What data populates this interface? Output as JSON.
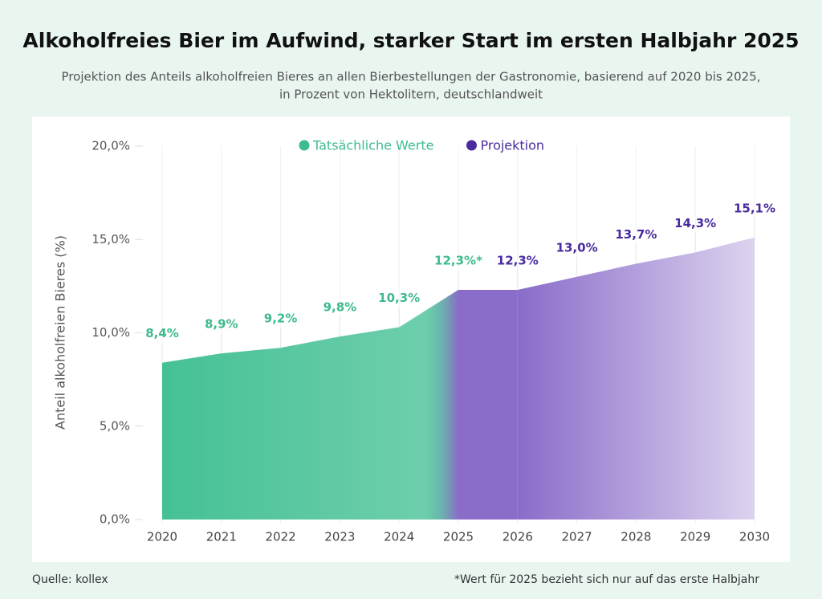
{
  "chart_data": {
    "type": "area",
    "title": "Alkoholfreies Bier im Aufwind, starker Start im ersten Halbjahr 2025",
    "subtitle": [
      "Projektion des Anteils alkoholfreien Bieres an allen Bierbestellungen der Gastronomie, basierend auf 2020 bis 2025,",
      "in Prozent von Hektolitern, deutschlandweit"
    ],
    "y_label": "Anteil alkoholfreien Bieres (%)",
    "categories": [
      "2020",
      "2021",
      "2022",
      "2023",
      "2024",
      "2025",
      "2026",
      "2027",
      "2028",
      "2029",
      "2030"
    ],
    "series": [
      {
        "name": "Tatsächliche Werte",
        "color": "#45c195",
        "label_color": "#3dbb8c",
        "values": [
          8.4,
          8.9,
          9.2,
          9.8,
          10.3,
          12.3,
          null,
          null,
          null,
          null,
          null
        ],
        "value_labels": [
          "8,4%",
          "8,9%",
          "9,2%",
          "9,8%",
          "10,3%",
          "12,3%*",
          null,
          null,
          null,
          null,
          null
        ]
      },
      {
        "name": "Projektion",
        "color": "#8a6cc9",
        "label_color": "#4a2a9e",
        "values": [
          null,
          null,
          null,
          null,
          null,
          null,
          12.3,
          13.0,
          13.7,
          14.3,
          15.1
        ],
        "value_labels": [
          null,
          null,
          null,
          null,
          null,
          null,
          "12,3%",
          "13,0%",
          "13,7%",
          "14,3%",
          "15,1%"
        ]
      }
    ],
    "ylim": [
      0,
      20
    ],
    "yticks": [
      {
        "value": 0,
        "label": "0,0%"
      },
      {
        "value": 5,
        "label": "5,0%"
      },
      {
        "value": 10,
        "label": "10,0%"
      },
      {
        "value": 15,
        "label": "15,0%"
      },
      {
        "value": 20,
        "label": "20,0%"
      }
    ],
    "legend": "top",
    "source": "Quelle: kollex",
    "note": "*Wert für 2025 bezieht sich nur auf das erste Halbjahr"
  }
}
